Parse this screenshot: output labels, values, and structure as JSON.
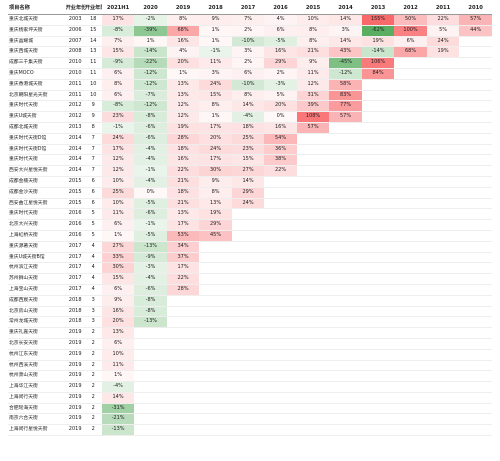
{
  "chart_data": {
    "type": "table",
    "headers": [
      "项目名称",
      "开业年份",
      "开业年限",
      "2021H1",
      "2020",
      "2019",
      "2018",
      "2017",
      "2016",
      "2015",
      "2014",
      "2013",
      "2012",
      "2011",
      "2010"
    ],
    "rows": [
      [
        "重庆北城天街",
        "2003",
        "18",
        "17%",
        "-2%",
        "8%",
        "9%",
        "7%",
        "4%",
        "10%",
        "14%",
        "155%",
        "50%",
        "22%",
        "57%"
      ],
      [
        "重庆杨家坪天街",
        "2006",
        "15",
        "-8%",
        "-39%",
        "68%",
        "1%",
        "2%",
        "6%",
        "8%",
        "3%",
        "-62%",
        "100%",
        "5%",
        "44%"
      ],
      [
        "重庆晶耀城",
        "2007",
        "14",
        "7%",
        "1%",
        "16%",
        "1%",
        "-10%",
        "-5%",
        "8%",
        "14%",
        "19%",
        "6%",
        "24%",
        ""
      ],
      [
        "重庆西城天街",
        "2008",
        "13",
        "15%",
        "-14%",
        "4%",
        "-1%",
        "3%",
        "16%",
        "21%",
        "43%",
        "-14%",
        "68%",
        "19%",
        ""
      ],
      [
        "成都三千集天街",
        "2010",
        "11",
        "-9%",
        "-22%",
        "20%",
        "11%",
        "2%",
        "29%",
        "9%",
        "-45%",
        "106%",
        "",
        "",
        ""
      ],
      [
        "重庆MOCO",
        "2010",
        "11",
        "6%",
        "-12%",
        "1%",
        "3%",
        "6%",
        "2%",
        "11%",
        "-12%",
        "84%",
        "",
        "",
        ""
      ],
      [
        "重庆香港城天街",
        "2011",
        "10",
        "8%",
        "-12%",
        "13%",
        "24%",
        "-10%",
        "-3%",
        "12%",
        "58%",
        "",
        "",
        "",
        ""
      ],
      [
        "北京朝阳星光天街",
        "2011",
        "10",
        "6%",
        "-7%",
        "13%",
        "15%",
        "8%",
        "5%",
        "31%",
        "83%",
        "",
        "",
        "",
        ""
      ],
      [
        "重庆时代天街",
        "2012",
        "9",
        "-8%",
        "-12%",
        "12%",
        "8%",
        "14%",
        "20%",
        "39%",
        "77%",
        "",
        "",
        "",
        ""
      ],
      [
        "重庆U城天街",
        "2012",
        "9",
        "23%",
        "-8%",
        "12%",
        "1%",
        "-4%",
        "0%",
        "108%",
        "57%",
        "",
        "",
        "",
        ""
      ],
      [
        "成都北城天街",
        "2013",
        "8",
        "-1%",
        "-6%",
        "19%",
        "17%",
        "18%",
        "16%",
        "57%",
        "",
        "",
        "",
        "",
        ""
      ],
      [
        "重庆时代天街D馆",
        "2014",
        "7",
        "24%",
        "-6%",
        "28%",
        "20%",
        "25%",
        "54%",
        "",
        "",
        "",
        "",
        "",
        ""
      ],
      [
        "重庆时代天街D馆",
        "2014",
        "7",
        "17%",
        "-4%",
        "18%",
        "24%",
        "23%",
        "36%",
        "",
        "",
        "",
        "",
        "",
        ""
      ],
      [
        "重庆时代天街",
        "2014",
        "7",
        "12%",
        "-4%",
        "16%",
        "17%",
        "15%",
        "38%",
        "",
        "",
        "",
        "",
        "",
        ""
      ],
      [
        "西安大兴星悦天街",
        "2014",
        "7",
        "12%",
        "-1%",
        "22%",
        "30%",
        "27%",
        "22%",
        "",
        "",
        "",
        "",
        "",
        ""
      ],
      [
        "成都金楠天街",
        "2015",
        "6",
        "10%",
        "-4%",
        "21%",
        "9%",
        "14%",
        "",
        "",
        "",
        "",
        "",
        "",
        ""
      ],
      [
        "成都金沙天街",
        "2015",
        "6",
        "25%",
        "0%",
        "18%",
        "8%",
        "29%",
        "",
        "",
        "",
        "",
        "",
        "",
        ""
      ],
      [
        "西安曲江星悦天街",
        "2015",
        "6",
        "10%",
        "-5%",
        "21%",
        "13%",
        "24%",
        "",
        "",
        "",
        "",
        "",
        "",
        ""
      ],
      [
        "重庆时代天街",
        "2016",
        "5",
        "11%",
        "-6%",
        "13%",
        "19%",
        "",
        "",
        "",
        "",
        "",
        "",
        "",
        ""
      ],
      [
        "北京大兴天街",
        "2016",
        "5",
        "6%",
        "-1%",
        "17%",
        "29%",
        "",
        "",
        "",
        "",
        "",
        "",
        "",
        ""
      ],
      [
        "上海虹桥天街",
        "2016",
        "5",
        "1%",
        "-5%",
        "53%",
        "45%",
        "",
        "",
        "",
        "",
        "",
        "",
        "",
        ""
      ],
      [
        "重庆源著天街",
        "2017",
        "4",
        "27%",
        "-13%",
        "34%",
        "",
        "",
        "",
        "",
        "",
        "",
        "",
        "",
        ""
      ],
      [
        "重庆U城天街B馆",
        "2017",
        "4",
        "33%",
        "-9%",
        "37%",
        "",
        "",
        "",
        "",
        "",
        "",
        "",
        "",
        ""
      ],
      [
        "杭州滨江天街",
        "2017",
        "4",
        "30%",
        "-3%",
        "17%",
        "",
        "",
        "",
        "",
        "",
        "",
        "",
        "",
        ""
      ],
      [
        "苏州狮山天街",
        "2017",
        "4",
        "15%",
        "-4%",
        "22%",
        "",
        "",
        "",
        "",
        "",
        "",
        "",
        "",
        ""
      ],
      [
        "上海宝山天街",
        "2017",
        "4",
        "6%",
        "-6%",
        "28%",
        "",
        "",
        "",
        "",
        "",
        "",
        "",
        "",
        ""
      ],
      [
        "成都西宸天街",
        "2018",
        "3",
        "9%",
        "-8%",
        "",
        "",
        "",
        "",
        "",
        "",
        "",
        "",
        "",
        ""
      ],
      [
        "北京房山天街",
        "2018",
        "3",
        "16%",
        "-8%",
        "",
        "",
        "",
        "",
        "",
        "",
        "",
        "",
        "",
        ""
      ],
      [
        "常州龙城天街",
        "2018",
        "3",
        "20%",
        "-13%",
        "",
        "",
        "",
        "",
        "",
        "",
        "",
        "",
        "",
        ""
      ],
      [
        "重庆礼嘉天街",
        "2019",
        "2",
        "13%",
        "",
        "",
        "",
        "",
        "",
        "",
        "",
        "",
        "",
        "",
        ""
      ],
      [
        "北京长安天街",
        "2019",
        "2",
        "6%",
        "",
        "",
        "",
        "",
        "",
        "",
        "",
        "",
        "",
        "",
        ""
      ],
      [
        "杭州江东天街",
        "2019",
        "2",
        "10%",
        "",
        "",
        "",
        "",
        "",
        "",
        "",
        "",
        "",
        "",
        ""
      ],
      [
        "杭州西溪天街",
        "2019",
        "2",
        "11%",
        "",
        "",
        "",
        "",
        "",
        "",
        "",
        "",
        "",
        "",
        ""
      ],
      [
        "杭州萧山天街",
        "2019",
        "2",
        "1%",
        "",
        "",
        "",
        "",
        "",
        "",
        "",
        "",
        "",
        "",
        ""
      ],
      [
        "上海华江天街",
        "2019",
        "2",
        "-4%",
        "",
        "",
        "",
        "",
        "",
        "",
        "",
        "",
        "",
        "",
        ""
      ],
      [
        "上海闵行天街",
        "2019",
        "2",
        "14%",
        "",
        "",
        "",
        "",
        "",
        "",
        "",
        "",
        "",
        "",
        ""
      ],
      [
        "合肥瑶海天街",
        "2019",
        "2",
        "-31%",
        "",
        "",
        "",
        "",
        "",
        "",
        "",
        "",
        "",
        "",
        ""
      ],
      [
        "南京六合天街",
        "2019",
        "2",
        "-21%",
        "",
        "",
        "",
        "",
        "",
        "",
        "",
        "",
        "",
        "",
        ""
      ],
      [
        "上海闵行星悦天街",
        "2019",
        "2",
        "-13%",
        "",
        "",
        "",
        "",
        "",
        "",
        "",
        "",
        "",
        "",
        ""
      ]
    ]
  },
  "colors": {
    "negative": "#5aae61",
    "positive": "#f8696b",
    "neutral": "#ffffff"
  }
}
